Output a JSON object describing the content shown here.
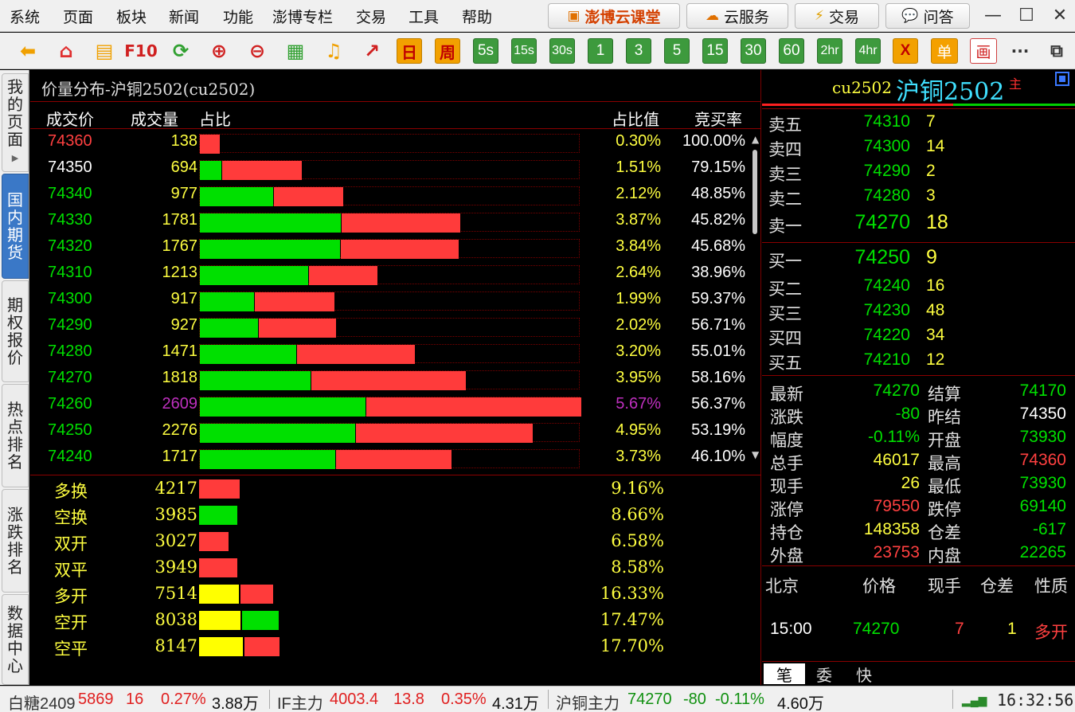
{
  "menu": [
    "系统",
    "页面",
    "板块",
    "新闻",
    "功能",
    "澎博专栏",
    "交易",
    "工具",
    "帮助"
  ],
  "top_buttons": {
    "classroom": "澎博云课堂",
    "cloud": "云服务",
    "trade": "交易",
    "qa": "问答"
  },
  "window_controls": {
    "minimize": "—",
    "maximize": "☐",
    "close": "✕"
  },
  "toolbar": {
    "icons": [
      "back-arrow-icon",
      "home-icon",
      "note-icon",
      "f10-icon",
      "refresh-icon",
      "zoom-in-icon",
      "zoom-out-icon",
      "window-icon",
      "bell-icon",
      "chart-up-icon"
    ],
    "f10": "F10",
    "periods": [
      "日",
      "周",
      "5s",
      "15s",
      "30s",
      "1",
      "3",
      "5",
      "15",
      "30",
      "60",
      "2hr",
      "4hr"
    ],
    "x_label": "X",
    "single_label": "单",
    "draw_label": "画",
    "more": "···"
  },
  "sidetabs": [
    {
      "label": "我的页面",
      "active": false,
      "arrow": "▶"
    },
    {
      "label": "国内期货",
      "active": true
    },
    {
      "label": "期权报价",
      "active": false
    },
    {
      "label": "热点排名",
      "active": false
    },
    {
      "label": "涨跌排名",
      "active": false
    },
    {
      "label": "数据中心",
      "active": false
    }
  ],
  "main": {
    "title": "价量分布-沪铜2502(cu2502)",
    "headers": {
      "price": "成交价",
      "volume": "成交量",
      "ratio": "占比",
      "ratio_value": "占比值",
      "bid_rate": "竞买率"
    },
    "rows": [
      {
        "price": "74360",
        "volume": "138",
        "pct": "0.30%",
        "rate": "100.00%",
        "green": 0,
        "red": 138,
        "price_color": "#ff4040",
        "vol_color": "#ffff40",
        "pct_color": "#ffff40"
      },
      {
        "price": "74350",
        "volume": "694",
        "pct": "1.51%",
        "rate": "79.15%",
        "green": 145,
        "red": 549,
        "price_color": "#ffffff",
        "vol_color": "#ffff40",
        "pct_color": "#ffff40"
      },
      {
        "price": "74340",
        "volume": "977",
        "pct": "2.12%",
        "rate": "48.85%",
        "green": 500,
        "red": 477,
        "price_color": "#00e000",
        "vol_color": "#ffff40",
        "pct_color": "#ffff40"
      },
      {
        "price": "74330",
        "volume": "1781",
        "pct": "3.87%",
        "rate": "45.82%",
        "green": 965,
        "red": 816,
        "price_color": "#00e000",
        "vol_color": "#ffff40",
        "pct_color": "#ffff40"
      },
      {
        "price": "74320",
        "volume": "1767",
        "pct": "3.84%",
        "rate": "45.68%",
        "green": 960,
        "red": 807,
        "price_color": "#00e000",
        "vol_color": "#ffff40",
        "pct_color": "#ffff40"
      },
      {
        "price": "74310",
        "volume": "1213",
        "pct": "2.64%",
        "rate": "38.96%",
        "green": 740,
        "red": 473,
        "price_color": "#00e000",
        "vol_color": "#ffff40",
        "pct_color": "#ffff40"
      },
      {
        "price": "74300",
        "volume": "917",
        "pct": "1.99%",
        "rate": "59.37%",
        "green": 373,
        "red": 544,
        "price_color": "#00e000",
        "vol_color": "#ffff40",
        "pct_color": "#ffff40"
      },
      {
        "price": "74290",
        "volume": "927",
        "pct": "2.02%",
        "rate": "56.71%",
        "green": 401,
        "red": 526,
        "price_color": "#00e000",
        "vol_color": "#ffff40",
        "pct_color": "#ffff40"
      },
      {
        "price": "74280",
        "volume": "1471",
        "pct": "3.20%",
        "rate": "55.01%",
        "green": 662,
        "red": 809,
        "price_color": "#00e000",
        "vol_color": "#ffff40",
        "pct_color": "#ffff40"
      },
      {
        "price": "74270",
        "volume": "1818",
        "pct": "3.95%",
        "rate": "58.16%",
        "green": 761,
        "red": 1057,
        "price_color": "#00e000",
        "vol_color": "#ffff40",
        "pct_color": "#ffff40"
      },
      {
        "price": "74260",
        "volume": "2609",
        "pct": "5.67%",
        "rate": "56.37%",
        "green": 1138,
        "red": 1471,
        "price_color": "#00e000",
        "vol_color": "#c030c0",
        "pct_color": "#c030c0"
      },
      {
        "price": "74250",
        "volume": "2276",
        "pct": "4.95%",
        "rate": "53.19%",
        "green": 1065,
        "red": 1211,
        "price_color": "#00e000",
        "vol_color": "#ffff40",
        "pct_color": "#ffff40"
      },
      {
        "price": "74240",
        "volume": "1717",
        "pct": "3.73%",
        "rate": "46.10%",
        "green": 926,
        "red": 791,
        "price_color": "#00e000",
        "vol_color": "#ffff40",
        "pct_color": "#ffff40"
      }
    ],
    "stats": [
      {
        "label": "多换",
        "volume": "4217",
        "pct": "9.16%",
        "yellow": 0,
        "green": 0,
        "red": 9.16
      },
      {
        "label": "空换",
        "volume": "3985",
        "pct": "8.66%",
        "yellow": 0,
        "green": 8.66,
        "red": 0
      },
      {
        "label": "双开",
        "volume": "3027",
        "pct": "6.58%",
        "yellow": 0,
        "green": 0,
        "red": 6.58
      },
      {
        "label": "双平",
        "volume": "3949",
        "pct": "8.58%",
        "yellow": 0,
        "green": 0,
        "red": 8.58
      },
      {
        "label": "多开",
        "volume": "7514",
        "pct": "16.33%",
        "yellow": 8.9,
        "green": 0,
        "red": 7.43
      },
      {
        "label": "空开",
        "volume": "8038",
        "pct": "17.47%",
        "yellow": 9.3,
        "green": 8.17,
        "red": 0
      },
      {
        "label": "空平",
        "volume": "8147",
        "pct": "17.70%",
        "yellow": 9.9,
        "green": 0,
        "red": 7.8
      }
    ]
  },
  "right": {
    "code": "cu2502",
    "name": "沪铜2502",
    "badge": "主",
    "asks": [
      {
        "label": "卖五",
        "price": "74310",
        "vol": "7"
      },
      {
        "label": "卖四",
        "price": "74300",
        "vol": "14"
      },
      {
        "label": "卖三",
        "price": "74290",
        "vol": "2"
      },
      {
        "label": "卖二",
        "price": "74280",
        "vol": "3"
      },
      {
        "label": "卖一",
        "price": "74270",
        "vol": "18"
      }
    ],
    "bids": [
      {
        "label": "买一",
        "price": "74250",
        "vol": "9"
      },
      {
        "label": "买二",
        "price": "74240",
        "vol": "16"
      },
      {
        "label": "买三",
        "price": "74230",
        "vol": "48"
      },
      {
        "label": "买四",
        "price": "74220",
        "vol": "34"
      },
      {
        "label": "买五",
        "price": "74210",
        "vol": "12"
      }
    ],
    "quote": [
      {
        "l1": "最新",
        "v1": "74270",
        "c1": "#00e000",
        "l2": "结算",
        "v2": "74170",
        "c2": "#00e000"
      },
      {
        "l1": "涨跌",
        "v1": "-80",
        "c1": "#00e000",
        "l2": "昨结",
        "v2": "74350",
        "c2": "#ffffff"
      },
      {
        "l1": "幅度",
        "v1": "-0.11%",
        "c1": "#00e000",
        "l2": "开盘",
        "v2": "73930",
        "c2": "#00e000"
      },
      {
        "l1": "总手",
        "v1": "46017",
        "c1": "#ffff40",
        "l2": "最高",
        "v2": "74360",
        "c2": "#ff4040"
      },
      {
        "l1": "现手",
        "v1": "26",
        "c1": "#ffff40",
        "l2": "最低",
        "v2": "73930",
        "c2": "#00e000"
      },
      {
        "l1": "涨停",
        "v1": "79550",
        "c1": "#ff4040",
        "l2": "跌停",
        "v2": "69140",
        "c2": "#00e000"
      },
      {
        "l1": "持仓",
        "v1": "148358",
        "c1": "#ffff40",
        "l2": "仓差",
        "v2": "-617",
        "c2": "#00e000"
      },
      {
        "l1": "外盘",
        "v1": "23753",
        "c1": "#ff4040",
        "l2": "内盘",
        "v2": "22265",
        "c2": "#00e000"
      }
    ],
    "ticks_header": {
      "location": "北京",
      "price": "价格",
      "now": "现手",
      "diff": "仓差",
      "nature": "性质"
    },
    "tick": {
      "time": "15:00",
      "price": "74270",
      "now": "7",
      "diff": "1",
      "nature": "多开"
    },
    "bottom_tabs": [
      "笔",
      "委",
      "快"
    ]
  },
  "statusbar": {
    "items": [
      {
        "name": "白糖2409",
        "price": "5869",
        "chg": "16",
        "pct": "0.27%",
        "amt": "3.88万",
        "color": "#e02020"
      },
      {
        "name": "IF主力",
        "price": "4003.4",
        "chg": "13.8",
        "pct": "0.35%",
        "amt": "4.31万",
        "color": "#e02020"
      },
      {
        "name": "沪铜主力",
        "price": "74270",
        "chg": "-80",
        "pct": "-0.11%",
        "amt": "4.60万",
        "color": "#109010"
      }
    ],
    "time": "16:32:56"
  }
}
